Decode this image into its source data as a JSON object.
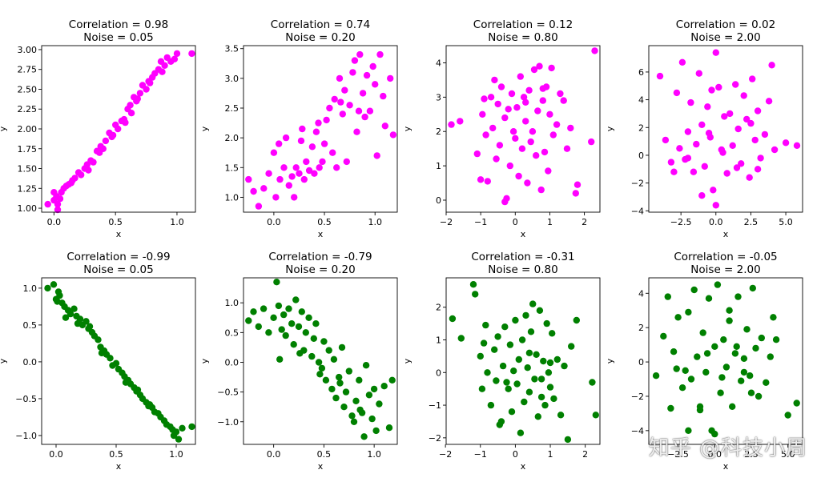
{
  "figure": {
    "watermark": "知乎 @科技小周"
  },
  "chart_data": [
    {
      "type": "scatter",
      "title": [
        "Correlation = 0.98",
        "Noise = 0.05"
      ],
      "xlabel": "x",
      "ylabel": "y",
      "xlim": [
        -0.1,
        1.15
      ],
      "ylim": [
        0.95,
        3.05
      ],
      "xticks": [
        0.0,
        0.5,
        1.0
      ],
      "xticklabels": [
        "0.0",
        "0.5",
        "1.0"
      ],
      "yticks": [
        1.0,
        1.25,
        1.5,
        1.75,
        2.0,
        2.25,
        2.5,
        2.75,
        3.0
      ],
      "yticklabels": [
        "1.00",
        "1.25",
        "1.50",
        "1.75",
        "2.00",
        "2.25",
        "2.50",
        "2.75",
        "3.00"
      ],
      "color": "#ff00ff",
      "x": [
        -0.05,
        0.0,
        0.0,
        0.02,
        0.03,
        0.05,
        0.06,
        0.08,
        0.1,
        0.12,
        0.15,
        0.17,
        0.2,
        0.22,
        0.25,
        0.27,
        0.3,
        0.32,
        0.35,
        0.37,
        0.4,
        0.42,
        0.45,
        0.47,
        0.5,
        0.52,
        0.55,
        0.57,
        0.6,
        0.62,
        0.65,
        0.67,
        0.7,
        0.72,
        0.75,
        0.77,
        0.8,
        0.82,
        0.85,
        0.87,
        0.9,
        0.92,
        0.95,
        1.0,
        1.12,
        0.03,
        0.14,
        0.28,
        0.38,
        0.48,
        0.58,
        0.63,
        0.68,
        0.78,
        0.88,
        0.98
      ],
      "y": [
        1.05,
        1.1,
        1.2,
        1.15,
        1.05,
        1.12,
        1.2,
        1.25,
        1.28,
        1.3,
        1.35,
        1.38,
        1.45,
        1.42,
        1.5,
        1.55,
        1.6,
        1.58,
        1.72,
        1.7,
        1.75,
        1.85,
        1.95,
        1.9,
        2.05,
        2.0,
        2.1,
        2.12,
        2.25,
        2.3,
        2.4,
        2.35,
        2.45,
        2.55,
        2.5,
        2.6,
        2.65,
        2.7,
        2.75,
        2.85,
        2.8,
        2.9,
        2.85,
        2.95,
        2.95,
        0.98,
        1.32,
        1.48,
        1.78,
        1.92,
        2.08,
        2.2,
        2.38,
        2.58,
        2.72,
        2.88
      ]
    },
    {
      "type": "scatter",
      "title": [
        "Correlation = 0.74",
        "Noise = 0.20"
      ],
      "xlabel": "x",
      "ylabel": "y",
      "xlim": [
        -0.3,
        1.22
      ],
      "ylim": [
        0.75,
        3.55
      ],
      "xticks": [
        0.0,
        0.5,
        1.0
      ],
      "xticklabels": [
        "0.0",
        "0.5",
        "1.0"
      ],
      "yticks": [
        1.0,
        1.5,
        2.0,
        2.5,
        3.0,
        3.5
      ],
      "yticklabels": [
        "1.0",
        "1.5",
        "2.0",
        "2.5",
        "3.0",
        "3.5"
      ],
      "color": "#ff00ff",
      "x": [
        -0.25,
        -0.2,
        -0.15,
        -0.1,
        -0.05,
        0.0,
        0.02,
        0.05,
        0.1,
        0.12,
        0.15,
        0.18,
        0.2,
        0.22,
        0.25,
        0.28,
        0.3,
        0.32,
        0.35,
        0.38,
        0.4,
        0.42,
        0.45,
        0.48,
        0.5,
        0.52,
        0.55,
        0.58,
        0.6,
        0.62,
        0.65,
        0.68,
        0.7,
        0.72,
        0.75,
        0.78,
        0.8,
        0.82,
        0.85,
        0.88,
        0.9,
        0.92,
        0.95,
        0.98,
        1.0,
        1.02,
        1.05,
        1.08,
        1.1,
        1.15,
        1.18,
        0.06,
        0.27,
        0.44,
        0.66,
        0.84
      ],
      "y": [
        1.3,
        1.1,
        0.85,
        1.15,
        1.4,
        1.75,
        1.0,
        1.9,
        1.5,
        2.0,
        1.2,
        1.35,
        1.0,
        1.5,
        1.4,
        2.15,
        1.3,
        1.6,
        1.45,
        1.85,
        1.4,
        2.1,
        1.5,
        1.6,
        1.9,
        2.3,
        2.5,
        1.75,
        2.65,
        1.5,
        3.0,
        2.4,
        2.8,
        1.6,
        2.55,
        3.1,
        3.3,
        2.1,
        3.4,
        2.75,
        2.35,
        3.05,
        2.45,
        3.2,
        2.9,
        1.7,
        3.4,
        2.7,
        2.2,
        3.0,
        2.05,
        1.3,
        1.95,
        2.25,
        2.6,
        2.45
      ]
    },
    {
      "type": "scatter",
      "title": [
        "Correlation = 0.12",
        "Noise = 0.80"
      ],
      "xlabel": "x",
      "ylabel": "y",
      "xlim": [
        -2.0,
        2.45
      ],
      "ylim": [
        -0.35,
        4.5
      ],
      "xticks": [
        -2,
        -1,
        0,
        1,
        2
      ],
      "xticklabels": [
        "−2",
        "−1",
        "0",
        "1",
        "2"
      ],
      "yticks": [
        0,
        1,
        2,
        3,
        4
      ],
      "yticklabels": [
        "0",
        "1",
        "2",
        "3",
        "4"
      ],
      "color": "#ff00ff",
      "x": [
        -1.85,
        -1.6,
        -1.1,
        -1.0,
        -0.95,
        -0.85,
        -0.8,
        -0.7,
        -0.65,
        -0.6,
        -0.55,
        -0.5,
        -0.45,
        -0.4,
        -0.3,
        -0.25,
        -0.2,
        -0.15,
        -0.1,
        -0.05,
        0.0,
        0.05,
        0.1,
        0.15,
        0.2,
        0.25,
        0.3,
        0.35,
        0.4,
        0.45,
        0.5,
        0.55,
        0.6,
        0.65,
        0.7,
        0.75,
        0.8,
        0.85,
        0.9,
        0.95,
        1.0,
        1.05,
        1.1,
        1.2,
        1.3,
        1.4,
        1.5,
        1.6,
        1.75,
        1.8,
        2.2,
        2.3,
        -0.9,
        -0.3,
        0.3,
        0.8
      ],
      "y": [
        2.2,
        2.3,
        1.35,
        0.6,
        2.5,
        1.9,
        0.55,
        3.0,
        2.1,
        3.5,
        1.2,
        2.8,
        1.6,
        3.3,
        2.4,
        0.05,
        2.65,
        1.0,
        3.1,
        2.0,
        1.8,
        2.7,
        0.7,
        3.6,
        1.5,
        3.0,
        2.3,
        0.5,
        3.2,
        1.7,
        2.0,
        3.8,
        1.3,
        2.6,
        3.9,
        0.3,
        2.9,
        1.4,
        3.3,
        0.85,
        2.5,
        3.85,
        1.9,
        2.2,
        3.1,
        2.9,
        1.5,
        2.1,
        0.2,
        0.45,
        1.7,
        4.35,
        2.95,
        -0.05,
        2.85,
        3.25
      ]
    },
    {
      "type": "scatter",
      "title": [
        "Correlation = 0.02",
        "Noise = 2.00"
      ],
      "xlabel": "x",
      "ylabel": "y",
      "xlim": [
        -4.8,
        6.2
      ],
      "ylim": [
        -4.1,
        7.9
      ],
      "xticks": [
        -2.5,
        0.0,
        2.5,
        5.0
      ],
      "xticklabels": [
        "−2.5",
        "0.0",
        "2.5",
        "5.0"
      ],
      "yticks": [
        -4,
        -2,
        0,
        2,
        4,
        6
      ],
      "yticklabels": [
        "−4",
        "−2",
        "0",
        "2",
        "4",
        "6"
      ],
      "color": "#ff00ff",
      "x": [
        -4.0,
        -3.6,
        -3.0,
        -2.8,
        -2.6,
        -2.4,
        -2.2,
        -2.0,
        -1.8,
        -1.6,
        -1.4,
        -1.2,
        -1.0,
        -0.8,
        -0.6,
        -0.4,
        -0.2,
        0.0,
        0.2,
        0.4,
        0.6,
        0.8,
        1.0,
        1.2,
        1.4,
        1.6,
        1.8,
        2.0,
        2.2,
        2.4,
        2.6,
        2.8,
        3.0,
        3.2,
        3.5,
        3.8,
        4.0,
        4.2,
        5.0,
        5.8,
        -2.0,
        -1.0,
        -0.5,
        0.5,
        1.5,
        2.5,
        -3.2,
        3.0,
        0.0,
        -0.3
      ],
      "y": [
        5.7,
        1.1,
        -1.2,
        4.5,
        0.5,
        6.7,
        -0.3,
        1.7,
        3.8,
        -1.2,
        0.8,
        5.9,
        2.2,
        -0.8,
        3.5,
        1.3,
        -2.5,
        7.4,
        4.9,
        0.4,
        2.8,
        -1.3,
        3.0,
        0.7,
        5.1,
        1.9,
        -0.6,
        4.3,
        2.6,
        -1.6,
        5.5,
        1.1,
        3.2,
        -0.2,
        1.5,
        3.9,
        6.5,
        0.4,
        0.9,
        0.7,
        -0.2,
        -2.9,
        1.6,
        0.2,
        -0.9,
        2.3,
        -0.5,
        -1.0,
        -3.6,
        4.7
      ]
    },
    {
      "type": "scatter",
      "title": [
        "Correlation = -0.99",
        "Noise = 0.05"
      ],
      "xlabel": "x",
      "ylabel": "y",
      "xlim": [
        -0.12,
        1.16
      ],
      "ylim": [
        -1.12,
        1.14
      ],
      "xticks": [
        0.0,
        0.5,
        1.0
      ],
      "xticklabels": [
        "0.0",
        "0.5",
        "1.0"
      ],
      "yticks": [
        -1.0,
        -0.5,
        0.0,
        0.5,
        1.0
      ],
      "yticklabels": [
        "−1.0",
        "−0.5",
        "0.0",
        "0.5",
        "1.0"
      ],
      "color": "#008000",
      "x": [
        -0.07,
        -0.02,
        0.0,
        0.02,
        0.03,
        0.05,
        0.07,
        0.1,
        0.12,
        0.15,
        0.17,
        0.2,
        0.22,
        0.25,
        0.27,
        0.3,
        0.32,
        0.35,
        0.37,
        0.4,
        0.42,
        0.45,
        0.47,
        0.5,
        0.52,
        0.55,
        0.57,
        0.6,
        0.62,
        0.65,
        0.67,
        0.7,
        0.72,
        0.75,
        0.77,
        0.8,
        0.82,
        0.85,
        0.87,
        0.9,
        0.92,
        0.95,
        0.97,
        1.0,
        1.02,
        1.05,
        1.13,
        0.01,
        0.08,
        0.18,
        0.28,
        0.38,
        0.58,
        0.68,
        0.78,
        0.98
      ],
      "y": [
        1.0,
        1.05,
        0.85,
        0.95,
        0.9,
        0.8,
        0.75,
        0.7,
        0.65,
        0.72,
        0.62,
        0.58,
        0.5,
        0.55,
        0.45,
        0.4,
        0.35,
        0.3,
        0.2,
        0.15,
        0.1,
        0.05,
        -0.05,
        -0.02,
        -0.1,
        -0.15,
        -0.2,
        -0.25,
        -0.3,
        -0.35,
        -0.4,
        -0.45,
        -0.5,
        -0.55,
        -0.6,
        -0.62,
        -0.68,
        -0.7,
        -0.75,
        -0.8,
        -0.85,
        -0.88,
        -0.92,
        -0.95,
        -1.05,
        -0.9,
        -0.88,
        0.82,
        0.6,
        0.52,
        0.48,
        0.12,
        -0.28,
        -0.38,
        -0.58,
        -1.0
      ]
    },
    {
      "type": "scatter",
      "title": [
        "Correlation = -0.79",
        "Noise = 0.20"
      ],
      "xlabel": "x",
      "ylabel": "y",
      "xlim": [
        -0.3,
        1.23
      ],
      "ylim": [
        -1.38,
        1.42
      ],
      "xticks": [
        0.0,
        0.5,
        1.0
      ],
      "xticklabels": [
        "0.0",
        "0.5",
        "1.0"
      ],
      "yticks": [
        -1.0,
        -0.5,
        0.0,
        0.5,
        1.0
      ],
      "yticklabels": [
        "−1.0",
        "−0.5",
        "0.0",
        "0.5",
        "1.0"
      ],
      "color": "#008000",
      "x": [
        -0.25,
        -0.2,
        -0.15,
        -0.1,
        -0.05,
        0.0,
        0.03,
        0.05,
        0.08,
        0.1,
        0.12,
        0.15,
        0.18,
        0.2,
        0.22,
        0.25,
        0.28,
        0.3,
        0.32,
        0.35,
        0.38,
        0.4,
        0.42,
        0.45,
        0.48,
        0.5,
        0.52,
        0.55,
        0.58,
        0.6,
        0.62,
        0.65,
        0.68,
        0.7,
        0.72,
        0.75,
        0.78,
        0.8,
        0.82,
        0.85,
        0.88,
        0.9,
        0.92,
        0.95,
        0.98,
        1.0,
        1.02,
        1.05,
        1.1,
        1.15,
        1.18,
        0.06,
        0.26,
        0.46,
        0.66,
        0.86
      ],
      "y": [
        0.7,
        0.85,
        0.6,
        0.9,
        0.5,
        0.75,
        1.35,
        0.95,
        0.55,
        0.8,
        0.45,
        0.9,
        0.65,
        0.3,
        1.05,
        0.6,
        0.85,
        0.2,
        0.5,
        0.75,
        0.1,
        0.4,
        0.65,
        0.0,
        -0.1,
        0.35,
        -0.3,
        0.2,
        -0.45,
        0.05,
        -0.6,
        -0.25,
        0.25,
        -0.75,
        -0.5,
        -0.15,
        -0.9,
        -1.0,
        -0.65,
        -0.3,
        -0.85,
        -1.25,
        -0.05,
        -0.55,
        -0.95,
        -0.45,
        -1.15,
        -0.7,
        -0.4,
        -1.1,
        -0.3,
        0.05,
        0.15,
        -0.2,
        -0.35,
        -0.8
      ]
    },
    {
      "type": "scatter",
      "title": [
        "Correlation = -0.31",
        "Noise = 0.80"
      ],
      "xlabel": "x",
      "ylabel": "y",
      "xlim": [
        -1.98,
        2.42
      ],
      "ylim": [
        -2.2,
        2.9
      ],
      "xticks": [
        -2,
        -1,
        0,
        1,
        2
      ],
      "xticklabels": [
        "−2",
        "−1",
        "0",
        "1",
        "2"
      ],
      "yticks": [
        -2,
        -1,
        0,
        1,
        2
      ],
      "yticklabels": [
        "−2",
        "−1",
        "0",
        "1",
        "2"
      ],
      "color": "#008000",
      "x": [
        -1.8,
        -1.55,
        -1.2,
        -1.15,
        -1.0,
        -0.95,
        -0.85,
        -0.8,
        -0.7,
        -0.6,
        -0.55,
        -0.5,
        -0.4,
        -0.35,
        -0.3,
        -0.2,
        -0.15,
        -0.1,
        -0.05,
        0.0,
        0.05,
        0.1,
        0.15,
        0.2,
        0.25,
        0.3,
        0.35,
        0.4,
        0.45,
        0.5,
        0.55,
        0.6,
        0.65,
        0.7,
        0.75,
        0.8,
        0.85,
        0.9,
        0.95,
        1.0,
        1.05,
        1.1,
        1.2,
        1.3,
        1.4,
        1.5,
        1.6,
        1.75,
        2.2,
        2.3,
        -0.9,
        -0.25,
        0.4,
        1.0,
        -0.45,
        0.75
      ],
      "y": [
        1.65,
        1.05,
        2.7,
        2.4,
        0.5,
        -0.5,
        1.45,
        0.0,
        -1.0,
        0.7,
        -0.25,
        1.1,
        -1.5,
        0.2,
        1.4,
        -0.5,
        0.85,
        -1.2,
        0.05,
        1.6,
        -0.35,
        0.4,
        -1.85,
        1.0,
        -0.9,
        1.75,
        0.15,
        -0.6,
        1.25,
        2.1,
        -0.2,
        0.55,
        -1.35,
        1.9,
        -0.75,
        0.35,
        -1.0,
        1.5,
        0.0,
        -0.45,
        1.2,
        -0.8,
        0.4,
        -1.3,
        0.2,
        -2.05,
        0.8,
        1.6,
        -0.3,
        -1.3,
        0.9,
        -0.3,
        0.6,
        0.3,
        -1.6,
        -0.2
      ]
    },
    {
      "type": "scatter",
      "title": [
        "Correlation = -0.05",
        "Noise = 2.00"
      ],
      "xlabel": "x",
      "ylabel": "y",
      "xlim": [
        -4.5,
        6.0
      ],
      "ylim": [
        -4.8,
        4.9
      ],
      "xticks": [
        -2.5,
        0.0,
        2.5,
        5.0
      ],
      "xticklabels": [
        "−2.5",
        "0.0",
        "2.5",
        "5.0"
      ],
      "yticks": [
        -4,
        -2,
        0,
        2,
        4
      ],
      "yticklabels": [
        "−4",
        "−2",
        "0",
        "2",
        "4"
      ],
      "color": "#008000",
      "x": [
        -4.0,
        -3.5,
        -3.2,
        -3.0,
        -2.8,
        -2.5,
        -2.2,
        -2.0,
        -1.8,
        -1.6,
        -1.4,
        -1.2,
        -1.0,
        -0.8,
        -0.6,
        -0.4,
        -0.2,
        0.0,
        0.2,
        0.4,
        0.6,
        0.8,
        1.0,
        1.2,
        1.4,
        1.6,
        1.8,
        2.0,
        2.2,
        2.4,
        2.6,
        2.8,
        3.0,
        3.2,
        3.5,
        3.8,
        4.0,
        4.2,
        5.0,
        5.6,
        -2.6,
        -1.8,
        -0.5,
        0.5,
        1.5,
        2.5,
        -1.0,
        0.0,
        1.0,
        2.0
      ],
      "y": [
        -0.8,
        1.5,
        3.8,
        -2.7,
        0.6,
        2.6,
        -1.5,
        -0.5,
        2.9,
        -1.0,
        4.2,
        0.3,
        -2.8,
        1.7,
        -0.6,
        3.7,
        -4.0,
        0.9,
        4.5,
        -1.8,
        1.3,
        -0.3,
        2.4,
        -2.6,
        0.5,
        3.8,
        -1.1,
        0.2,
        1.9,
        -0.8,
        4.3,
        0.8,
        -2.0,
        1.4,
        -1.2,
        0.3,
        2.6,
        1.3,
        -3.1,
        -2.4,
        -0.4,
        -4.0,
        0.5,
        -0.9,
        0.9,
        -1.8,
        -2.6,
        -4.2,
        3.0,
        -0.6
      ]
    }
  ]
}
